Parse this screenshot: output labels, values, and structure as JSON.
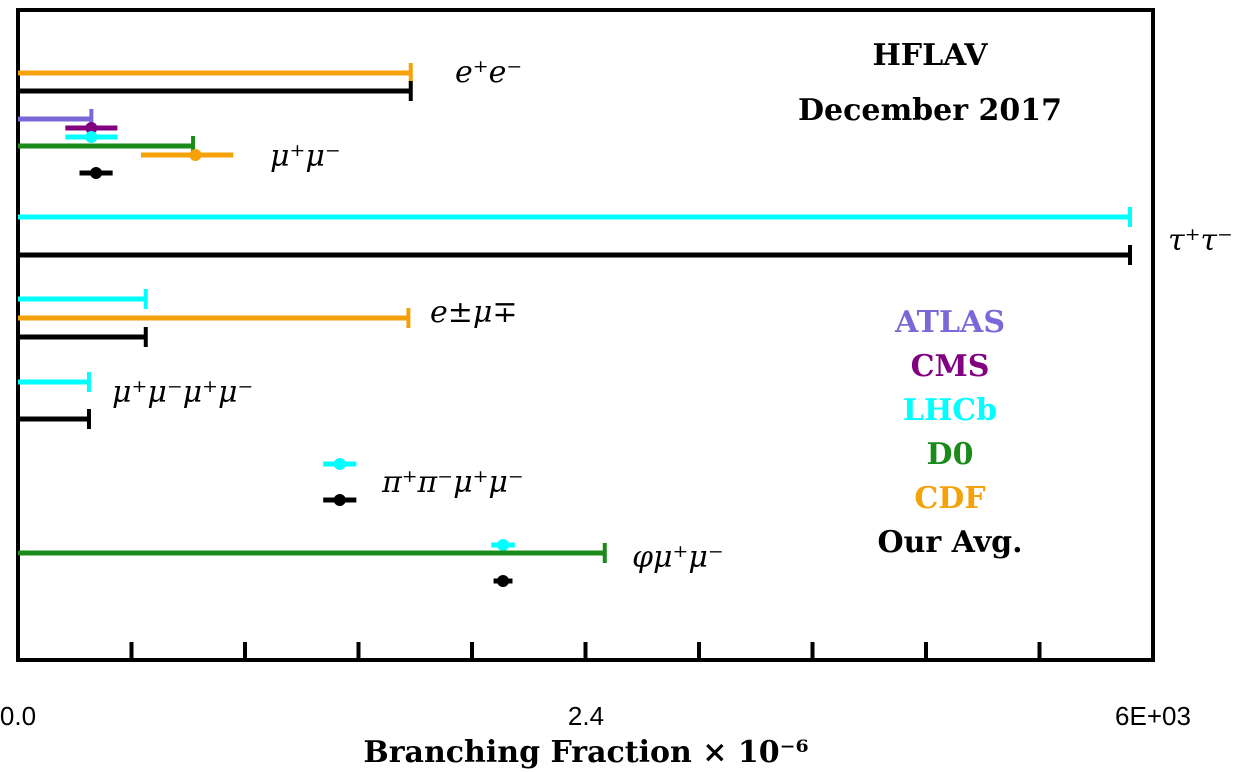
{
  "chart_data": {
    "type": "errorbar",
    "title": "HFLAV",
    "subtitle": "December 2017",
    "xlabel": "Branching Fraction × 10⁻⁶",
    "x_tick_labels": [
      "0.0",
      "2.4",
      "6E+03"
    ],
    "legend": [
      {
        "name": "ATLAS",
        "color": "#7b68d8"
      },
      {
        "name": "CMS",
        "color": "#800080"
      },
      {
        "name": "LHCb",
        "color": "#00ffff"
      },
      {
        "name": "D0",
        "color": "#1a8a1a"
      },
      {
        "name": "CDF",
        "color": "#f5a20a"
      },
      {
        "name": "Our Avg.",
        "color": "#000000"
      }
    ],
    "legend_position": "right",
    "groups": [
      {
        "label": "e⁺e⁻",
        "entries": [
          {
            "experiment": "CDF",
            "kind": "limit",
            "upper": 1.66
          },
          {
            "experiment": "Our Avg.",
            "kind": "limit",
            "upper": 1.66
          }
        ]
      },
      {
        "label": "μ⁺μ⁻",
        "entries": [
          {
            "experiment": "ATLAS",
            "kind": "limit",
            "upper": 0.31
          },
          {
            "experiment": "CMS",
            "kind": "measurement",
            "value": 0.31,
            "low": 0.2,
            "high": 0.42
          },
          {
            "experiment": "LHCb",
            "kind": "measurement",
            "value": 0.31,
            "low": 0.2,
            "high": 0.42
          },
          {
            "experiment": "D0",
            "kind": "limit",
            "upper": 0.74
          },
          {
            "experiment": "CDF",
            "kind": "measurement",
            "value": 0.75,
            "low": 0.52,
            "high": 0.91
          },
          {
            "experiment": "Our Avg.",
            "kind": "measurement",
            "value": 0.33,
            "low": 0.26,
            "high": 0.4
          }
        ]
      },
      {
        "label": "τ⁺τ⁻",
        "entries": [
          {
            "experiment": "LHCb",
            "kind": "limit",
            "upper": 4.7
          },
          {
            "experiment": "Our Avg.",
            "kind": "limit",
            "upper": 4.7
          }
        ]
      },
      {
        "label": "e±μ∓",
        "entries": [
          {
            "experiment": "LHCb",
            "kind": "limit",
            "upper": 0.54
          },
          {
            "experiment": "CDF",
            "kind": "limit",
            "upper": 1.65
          },
          {
            "experiment": "Our Avg.",
            "kind": "limit",
            "upper": 0.54
          }
        ]
      },
      {
        "label": "μ⁺μ⁻μ⁺μ⁻",
        "entries": [
          {
            "experiment": "LHCb",
            "kind": "limit",
            "upper": 0.3
          },
          {
            "experiment": "Our Avg.",
            "kind": "limit",
            "upper": 0.3
          }
        ]
      },
      {
        "label": "π⁺π⁻μ⁺μ⁻",
        "entries": [
          {
            "experiment": "LHCb",
            "kind": "measurement",
            "value": 1.36,
            "low": 1.29,
            "high": 1.43
          },
          {
            "experiment": "Our Avg.",
            "kind": "measurement",
            "value": 1.36,
            "low": 1.29,
            "high": 1.43
          }
        ]
      },
      {
        "label": "φμ⁺μ⁻",
        "entries": [
          {
            "experiment": "LHCb",
            "kind": "measurement",
            "value": 2.05,
            "low": 2.0,
            "high": 2.1
          },
          {
            "experiment": "D0",
            "kind": "limit",
            "upper": 2.48
          },
          {
            "experiment": "Our Avg.",
            "kind": "measurement",
            "value": 2.05,
            "low": 2.01,
            "high": 2.09
          }
        ]
      }
    ]
  }
}
